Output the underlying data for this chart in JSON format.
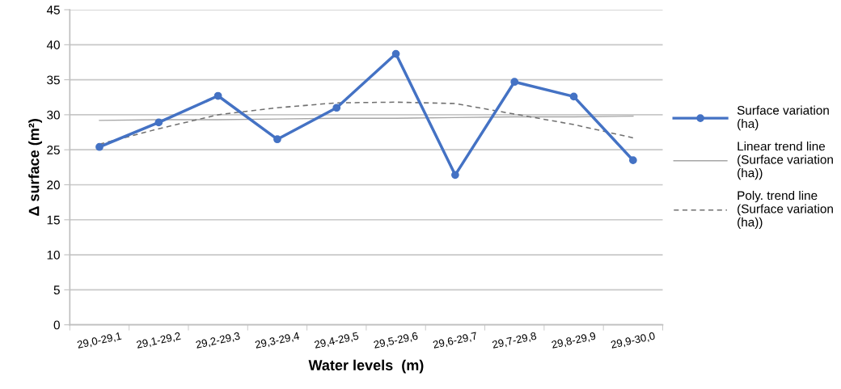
{
  "chart_data": {
    "type": "line",
    "xlabel": "Water levels  (m)",
    "ylabel": "Δ surface (m²)",
    "categories": [
      "29,0-29,1",
      "29,1-29,2",
      "29,2-29,3",
      "29,3-29,4",
      "29,4-29,5",
      "29,5-29,6",
      "29,6-29,7",
      "29,7-29,8",
      "29,8-29,9",
      "29,9-30,0"
    ],
    "series": [
      {
        "name": "Surface variation (ha)",
        "color": "#4472c4",
        "marker": "circle",
        "line_style": "solid",
        "values": [
          25.4,
          28.9,
          32.7,
          26.5,
          31.0,
          38.7,
          21.4,
          34.7,
          32.6,
          23.5
        ]
      },
      {
        "name": "Linear trend line (Surface variation (ha))",
        "color": "#a6a6a6",
        "marker": "none",
        "line_style": "solid",
        "values": [
          29.2,
          29.3,
          29.3,
          29.4,
          29.5,
          29.5,
          29.6,
          29.7,
          29.7,
          29.8
        ]
      },
      {
        "name": "Poly. trend line (Surface variation (ha))",
        "color": "#707070",
        "marker": "none",
        "line_style": "dashed",
        "values": [
          25.8,
          28.0,
          30.0,
          31.0,
          31.7,
          31.8,
          31.6,
          30.1,
          28.6,
          26.7
        ]
      }
    ],
    "ylim": [
      0,
      45
    ],
    "yticks": [
      0,
      5,
      10,
      15,
      20,
      25,
      30,
      35,
      40,
      45
    ],
    "grid": "y",
    "legend": "right"
  }
}
